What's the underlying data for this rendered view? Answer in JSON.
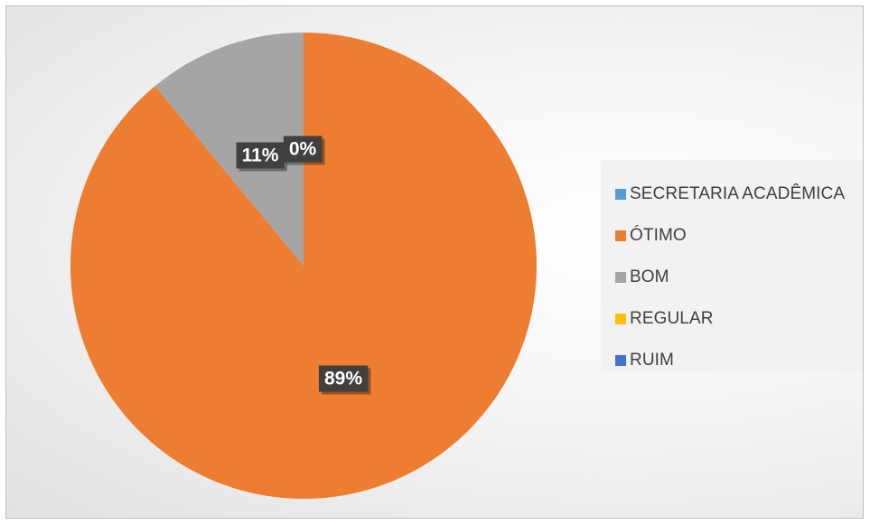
{
  "chart_data": {
    "type": "pie",
    "title": "",
    "legend_position": "right",
    "series_name": "SECRETARIA ACADÊMICA",
    "categories": [
      "ÓTIMO",
      "BOM",
      "REGULAR",
      "RUIM"
    ],
    "values": [
      89,
      11,
      0,
      0
    ],
    "data_labels": [
      "89%",
      "11%",
      "0%",
      "0%"
    ],
    "colors": [
      "#ED7D31",
      "#A5A5A5",
      "#FFC000",
      "#4472C4"
    ],
    "legend": [
      {
        "label": "SECRETARIA ACADÊMICA",
        "color": "#5B9BD5"
      },
      {
        "label": "ÓTIMO",
        "color": "#ED7D31"
      },
      {
        "label": "BOM",
        "color": "#A5A5A5"
      },
      {
        "label": "REGULAR",
        "color": "#FFC000"
      },
      {
        "label": "RUIM",
        "color": "#4472C4"
      }
    ]
  }
}
